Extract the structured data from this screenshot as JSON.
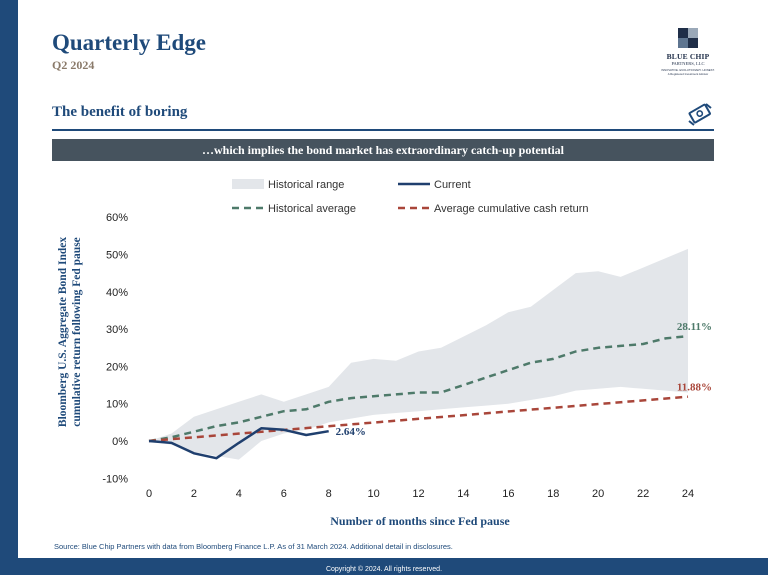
{
  "header": {
    "title": "Quarterly Edge",
    "subtitle": "Q2 2024"
  },
  "logo": {
    "name": "BLUE CHIP",
    "sub": "PARTNERS, LLC",
    "tagline": "A Registered Investment Advisor",
    "tag_line2": "INNOVATIVE. EVOLUTIONARY. HONEST."
  },
  "section": {
    "title": "The benefit of boring"
  },
  "banner": {
    "text": "…which implies the bond market has extraordinary catch-up potential"
  },
  "colors": {
    "brand_blue": "#1f4a7a",
    "banner_gray": "#46535e",
    "range_fill": "#e3e6ea",
    "current": "#1f3f6e",
    "hist_avg": "#4e7a6a",
    "cash": "#a9463a"
  },
  "chart_data": {
    "type": "line",
    "xlabel": "Number of months since Fed pause",
    "ylabel": "Bloomberg U.S. Aggregate Bond Index cumulative return following Fed pause",
    "ylabel_lines": [
      "Bloomberg U.S. Aggregate Bond Index",
      "cumulative return following Fed pause"
    ],
    "xlim": [
      0,
      24
    ],
    "ylim": [
      -10,
      60
    ],
    "xticks": [
      0,
      2,
      4,
      6,
      8,
      10,
      12,
      14,
      16,
      18,
      20,
      22,
      24
    ],
    "yticks": [
      -10,
      0,
      10,
      20,
      30,
      40,
      50,
      60
    ],
    "ytick_labels": [
      "-10%",
      "0%",
      "10%",
      "20%",
      "30%",
      "40%",
      "50%",
      "60%"
    ],
    "legend": [
      {
        "key": "range",
        "label": "Historical range"
      },
      {
        "key": "current",
        "label": "Current"
      },
      {
        "key": "avg",
        "label": "Historical average"
      },
      {
        "key": "cash",
        "label": "Average cumulative cash return"
      }
    ],
    "range": {
      "name": "Historical range",
      "x": [
        0,
        1,
        2,
        3,
        4,
        5,
        6,
        7,
        8,
        9,
        10,
        11,
        12,
        13,
        14,
        15,
        16,
        17,
        18,
        19,
        20,
        21,
        22,
        23,
        24
      ],
      "upper": [
        0,
        2,
        6.5,
        8.5,
        10.5,
        12.5,
        10.5,
        12.5,
        14.5,
        21,
        22,
        21.5,
        24,
        25,
        28,
        31,
        34.5,
        36,
        40.5,
        45,
        45.5,
        44,
        46.5,
        49,
        51.5
      ],
      "lower": [
        0,
        -1,
        -3,
        -4,
        -5,
        0,
        2,
        3,
        5,
        6,
        7,
        7.5,
        8,
        8.5,
        9,
        9.5,
        10,
        11,
        12,
        13.5,
        14,
        14.5,
        14,
        13.5,
        13
      ]
    },
    "series": [
      {
        "key": "avg",
        "name": "Historical average",
        "x": [
          0,
          1,
          2,
          3,
          4,
          5,
          6,
          7,
          8,
          9,
          10,
          11,
          12,
          13,
          14,
          15,
          16,
          17,
          18,
          19,
          20,
          21,
          22,
          23,
          24
        ],
        "values": [
          0,
          1,
          2.5,
          4,
          5,
          6.5,
          8,
          8.5,
          10.5,
          11.5,
          12,
          12.5,
          13,
          13,
          15,
          17,
          19,
          21,
          22,
          24,
          25,
          25.5,
          26,
          27.5,
          28.11
        ],
        "end_label": "28.11%"
      },
      {
        "key": "cash",
        "name": "Average cumulative cash return",
        "x": [
          0,
          24
        ],
        "values": [
          0,
          11.88
        ],
        "end_label": "11.88%"
      },
      {
        "key": "current",
        "name": "Current",
        "x": [
          0,
          1,
          2,
          3,
          4,
          5,
          6,
          7,
          8
        ],
        "values": [
          0,
          -0.5,
          -3.3,
          -4.6,
          -0.5,
          3.4,
          3.0,
          1.6,
          2.64
        ],
        "end_label": "2.64%"
      }
    ]
  },
  "source": "Source: Blue Chip Partners with data from Bloomberg Finance L.P. As of 31 March 2024. Additional detail in disclosures.",
  "footer": "Copyright © 2024. All rights reserved."
}
